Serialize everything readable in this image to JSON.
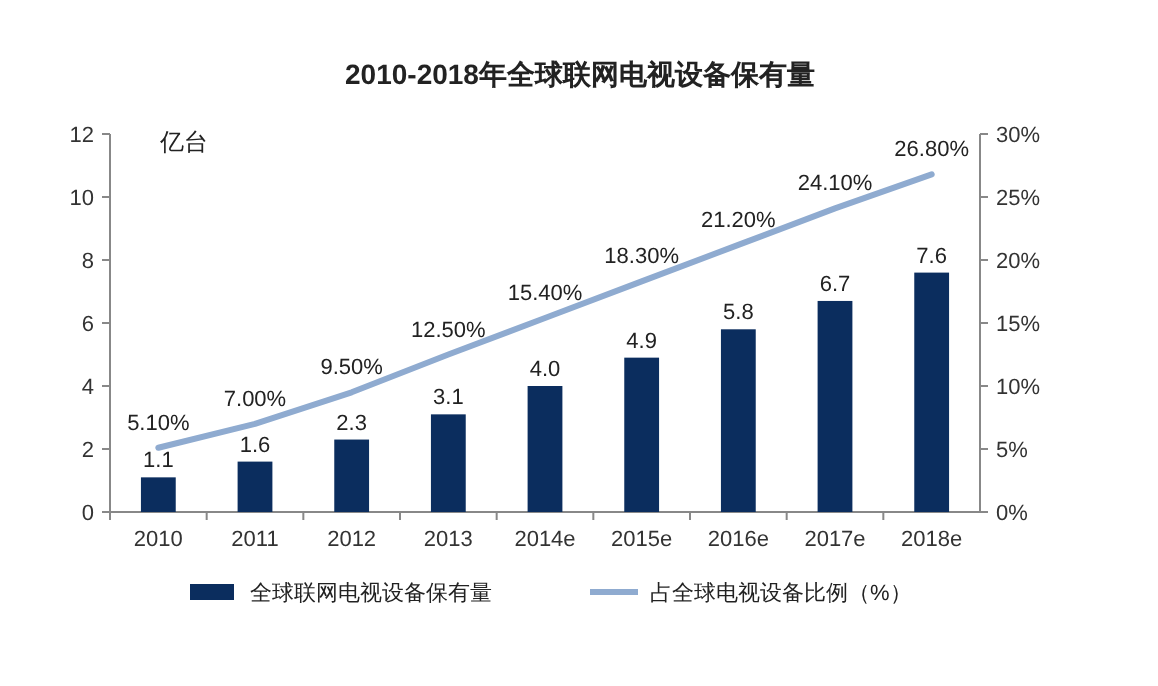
{
  "chart_data": {
    "type": "bar",
    "title": "2010-2018年全球联网电视设备保有量",
    "ylabel": "亿台",
    "categories": [
      "2010",
      "2011",
      "2012",
      "2013",
      "2014e",
      "2015e",
      "2016e",
      "2017e",
      "2018e"
    ],
    "series": [
      {
        "name": "全球联网电视设备保有量",
        "color": "#0b2d5e",
        "values": [
          1.1,
          1.6,
          2.3,
          3.1,
          4.0,
          4.9,
          5.8,
          6.7,
          7.6
        ],
        "value_labels": [
          "1.1",
          "1.6",
          "2.3",
          "3.1",
          "4.0",
          "4.9",
          "5.8",
          "6.7",
          "7.6"
        ]
      },
      {
        "name": "占全球电视设备比例（%）",
        "type": "line",
        "axis": "y2",
        "color": "#8fabd0",
        "values": [
          5.1,
          7.0,
          9.5,
          12.5,
          15.4,
          18.3,
          21.2,
          24.1,
          26.8
        ],
        "value_labels": [
          "5.10%",
          "7.00%",
          "9.50%",
          "12.50%",
          "15.40%",
          "18.30%",
          "21.20%",
          "24.10%",
          "26.80%"
        ]
      }
    ],
    "ylim": [
      0,
      12
    ],
    "yticks": [
      0,
      2,
      4,
      6,
      8,
      10,
      12
    ],
    "y2lim": [
      0,
      30
    ],
    "y2ticks": [
      {
        "value": 0,
        "label": "0%"
      },
      {
        "value": 5,
        "label": "5%"
      },
      {
        "value": 10,
        "label": "10%"
      },
      {
        "value": 15,
        "label": "15%"
      },
      {
        "value": 20,
        "label": "20%"
      },
      {
        "value": 25,
        "label": "25%"
      },
      {
        "value": 30,
        "label": "30%"
      }
    ],
    "legend": "bottom",
    "grid": false,
    "marker": "none",
    "line_style": "solid"
  }
}
